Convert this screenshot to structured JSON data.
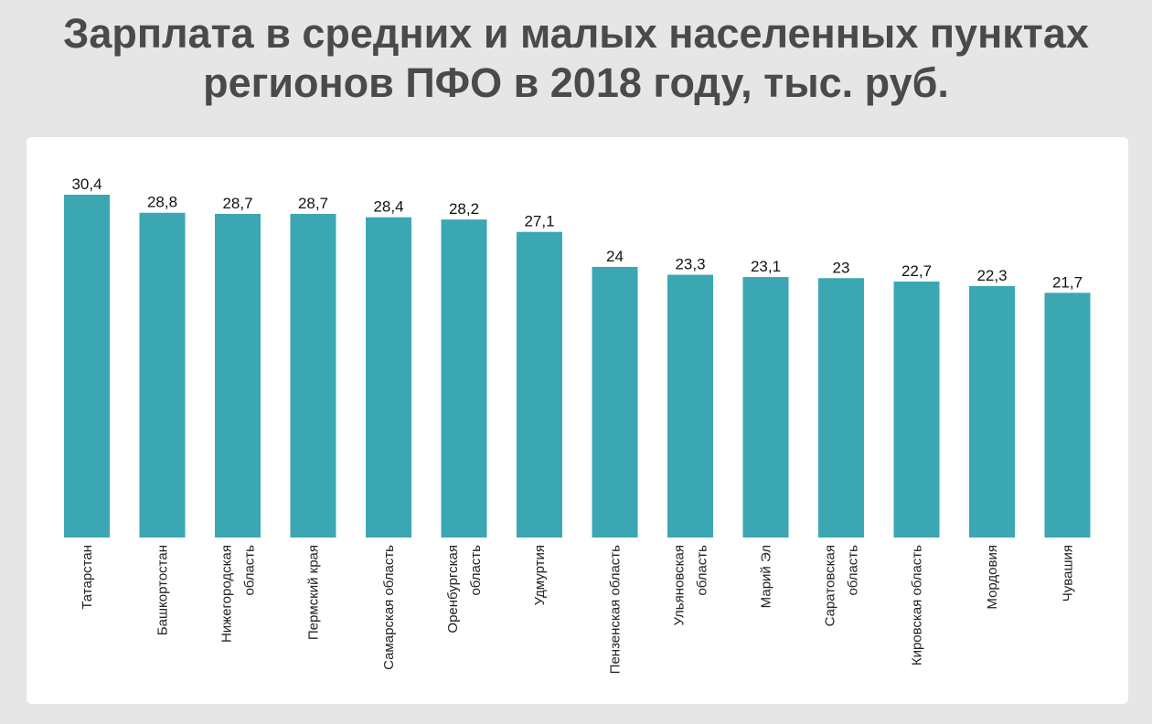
{
  "chart_data": {
    "type": "bar",
    "title_lines": [
      "Зарплата в средних и малых населенных пунктах",
      "регионов ПФО в 2018 году, тыс. руб."
    ],
    "categories": [
      [
        "Татарстан"
      ],
      [
        "Башкортостан"
      ],
      [
        "Нижегородская",
        "область"
      ],
      [
        "Пермский края"
      ],
      [
        "Самарская область"
      ],
      [
        "Оренбургская",
        "область"
      ],
      [
        "Удмуртия"
      ],
      [
        "Пензенская область"
      ],
      [
        "Ульяновская",
        "область"
      ],
      [
        "Марий Эл"
      ],
      [
        "Саратовская",
        "область"
      ],
      [
        "Кировская область"
      ],
      [
        "Мордовия"
      ],
      [
        "Чувашия"
      ]
    ],
    "values": [
      30.4,
      28.8,
      28.7,
      28.7,
      28.4,
      28.2,
      27.1,
      24,
      23.3,
      23.1,
      23,
      22.7,
      22.3,
      21.7
    ],
    "value_labels": [
      "30,4",
      "28,8",
      "28,7",
      "28,7",
      "28,4",
      "28,2",
      "27,1",
      "24",
      "23,3",
      "23,1",
      "23",
      "22,7",
      "22,3",
      "21,7"
    ],
    "bar_color": "#3ba7b3",
    "ylim": [
      0,
      30.4
    ],
    "grid": false,
    "legend": "none"
  }
}
